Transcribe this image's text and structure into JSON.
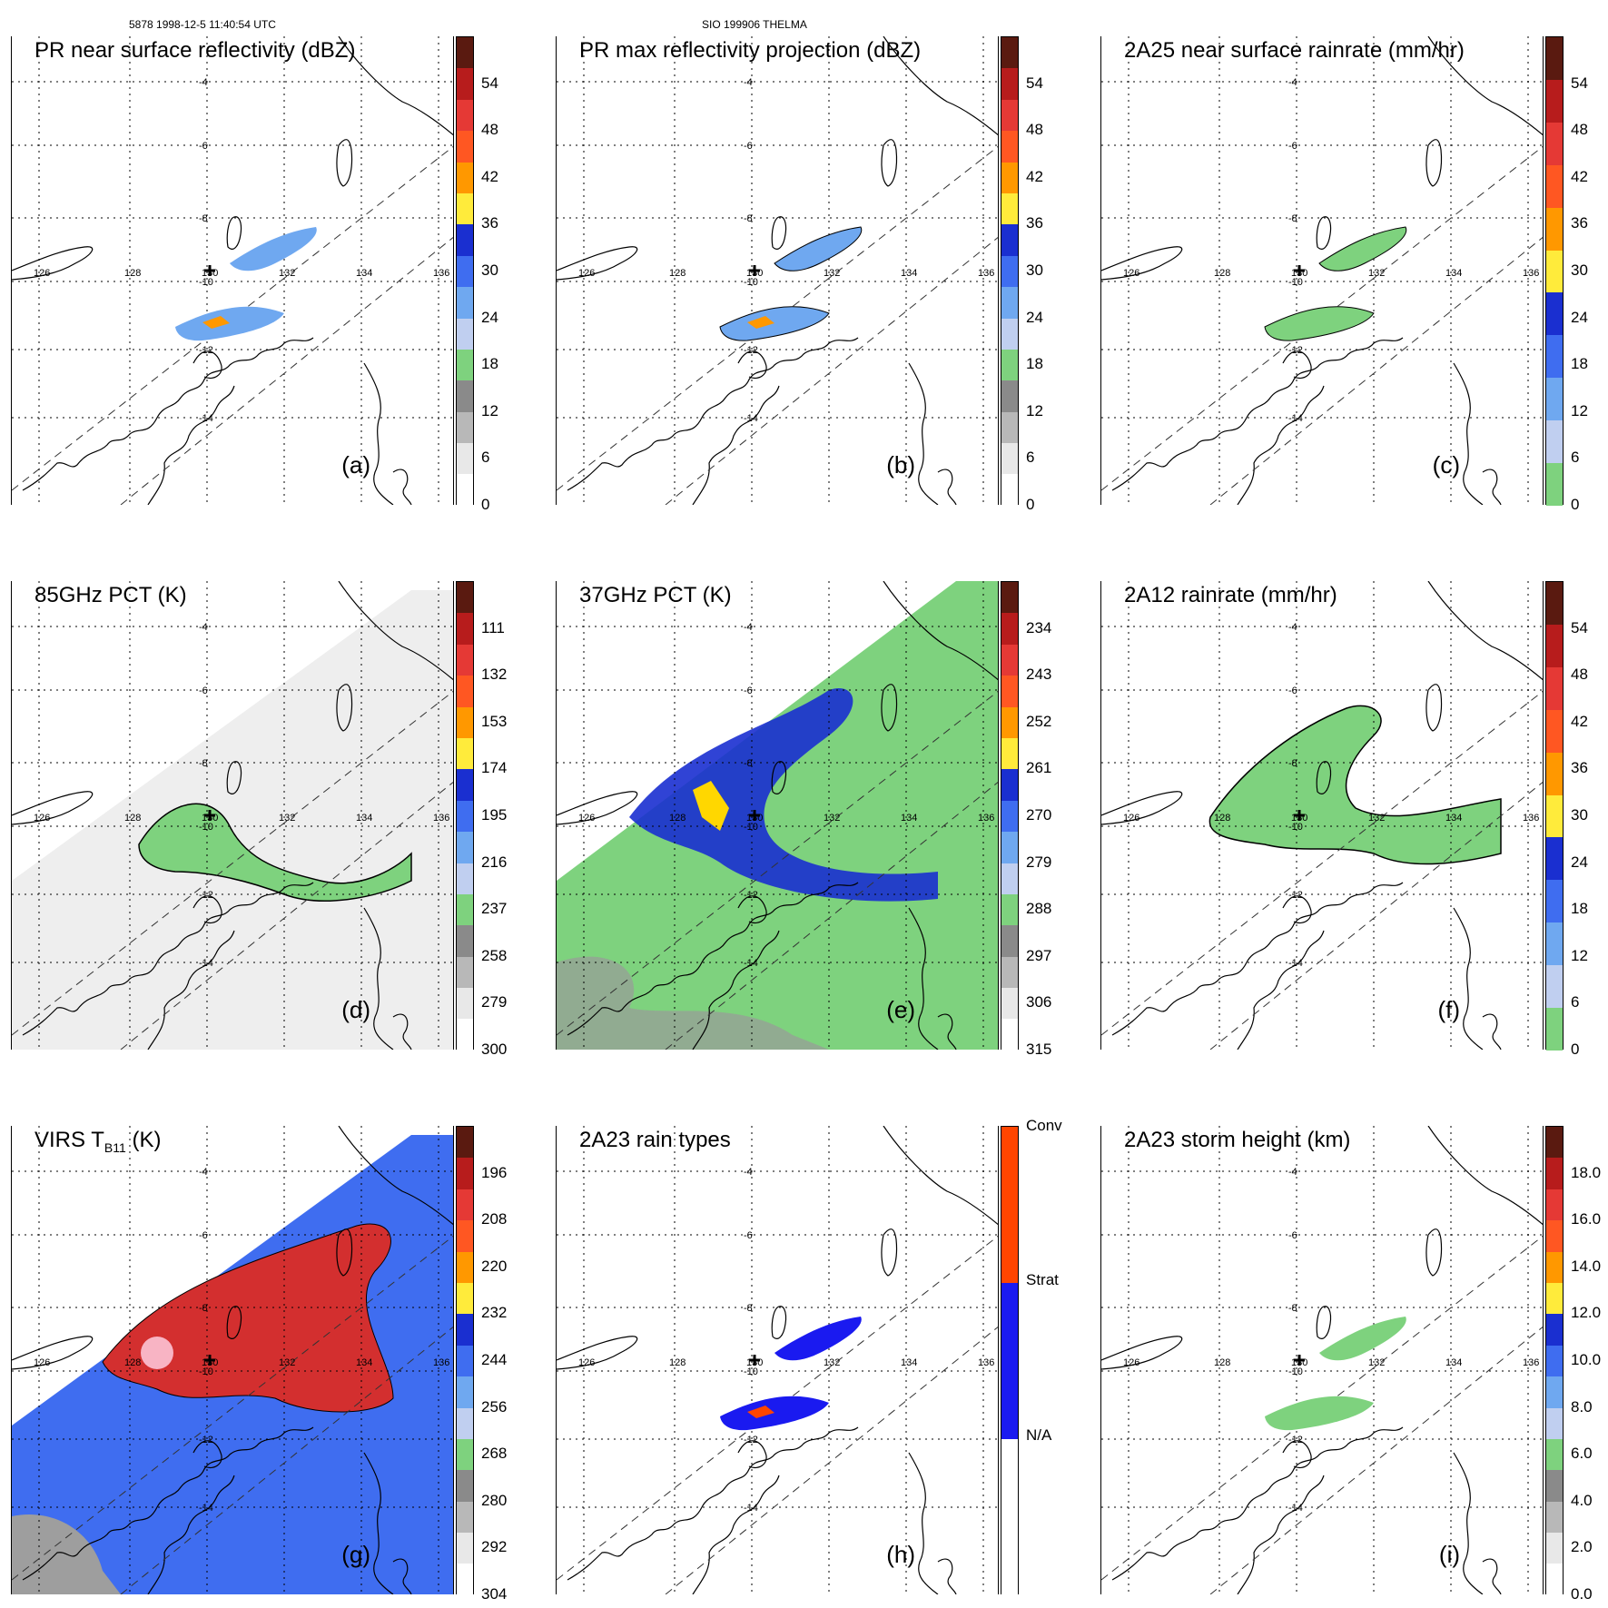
{
  "header": {
    "left": "5878 1998-12-5 11:40:54 UTC",
    "center": "SIO 199906 THELMA"
  },
  "map_labels": {
    "lon": [
      "126",
      "128",
      "130",
      "132",
      "134",
      "136"
    ],
    "lat": [
      "-4",
      "-6",
      "-8",
      "-10",
      "-12",
      "-14"
    ]
  },
  "panels": [
    {
      "id": "a",
      "title": "PR near surface reflectivity (dBZ)",
      "label": "(a)",
      "ticks": [
        "54",
        "48",
        "42",
        "36",
        "30",
        "24",
        "18",
        "12",
        "6",
        "0"
      ],
      "colors": [
        "#5a1a10",
        "#b71c1c",
        "#e53935",
        "#ff5722",
        "#ff9800",
        "#ffeb3b",
        "#1a2fd0",
        "#3f6df0",
        "#6fa8f0",
        "#c0cff0",
        "#7ed27e",
        "#8a8a8a",
        "#b8b8b8",
        "#e8e8e8",
        "#ffffff"
      ]
    },
    {
      "id": "b",
      "title": "PR max reflectivity projection (dBZ)",
      "label": "(b)",
      "ticks": [
        "54",
        "48",
        "42",
        "36",
        "30",
        "24",
        "18",
        "12",
        "6",
        "0"
      ],
      "colors": [
        "#5a1a10",
        "#b71c1c",
        "#e53935",
        "#ff5722",
        "#ff9800",
        "#ffeb3b",
        "#1a2fd0",
        "#3f6df0",
        "#6fa8f0",
        "#c0cff0",
        "#7ed27e",
        "#8a8a8a",
        "#b8b8b8",
        "#e8e8e8",
        "#ffffff"
      ]
    },
    {
      "id": "c",
      "title": "2A25 near surface rainrate (mm/hr)",
      "label": "(c)",
      "ticks": [
        "54",
        "48",
        "42",
        "36",
        "30",
        "24",
        "18",
        "12",
        "6",
        "0"
      ],
      "colors": [
        "#5a1a10",
        "#b71c1c",
        "#e53935",
        "#ff5722",
        "#ff9800",
        "#ffeb3b",
        "#1a2fd0",
        "#3f6df0",
        "#6fa8f0",
        "#c0cff0",
        "#7ed27e"
      ]
    },
    {
      "id": "d",
      "title": "85GHz PCT (K)",
      "label": "(d)",
      "ticks": [
        "111",
        "132",
        "153",
        "174",
        "195",
        "216",
        "237",
        "258",
        "279",
        "300"
      ],
      "colors": [
        "#5a1a10",
        "#b71c1c",
        "#e53935",
        "#ff5722",
        "#ff9800",
        "#ffeb3b",
        "#1a2fd0",
        "#3f6df0",
        "#6fa8f0",
        "#c0cff0",
        "#7ed27e",
        "#8a8a8a",
        "#b8b8b8",
        "#e8e8e8",
        "#ffffff"
      ]
    },
    {
      "id": "e",
      "title": "37GHz PCT (K)",
      "label": "(e)",
      "ticks": [
        "234",
        "243",
        "252",
        "261",
        "270",
        "279",
        "288",
        "297",
        "306",
        "315"
      ],
      "colors": [
        "#5a1a10",
        "#b71c1c",
        "#e53935",
        "#ff5722",
        "#ff9800",
        "#ffeb3b",
        "#1a2fd0",
        "#3f6df0",
        "#6fa8f0",
        "#c0cff0",
        "#7ed27e",
        "#8a8a8a",
        "#b8b8b8",
        "#e8e8e8",
        "#ffffff"
      ]
    },
    {
      "id": "f",
      "title": "2A12 rainrate (mm/hr)",
      "label": "(f)",
      "ticks": [
        "54",
        "48",
        "42",
        "36",
        "30",
        "24",
        "18",
        "12",
        "6",
        "0"
      ],
      "colors": [
        "#5a1a10",
        "#b71c1c",
        "#e53935",
        "#ff5722",
        "#ff9800",
        "#ffeb3b",
        "#1a2fd0",
        "#3f6df0",
        "#6fa8f0",
        "#c0cff0",
        "#7ed27e"
      ]
    },
    {
      "id": "g",
      "title": "VIRS T",
      "title_sub": "B11",
      "title_tail": " (K)",
      "label": "(g)",
      "ticks": [
        "196",
        "208",
        "220",
        "232",
        "244",
        "256",
        "268",
        "280",
        "292",
        "304"
      ],
      "colors": [
        "#5a1a10",
        "#b71c1c",
        "#e53935",
        "#ff5722",
        "#ff9800",
        "#ffeb3b",
        "#1a2fd0",
        "#3f6df0",
        "#6fa8f0",
        "#c0cff0",
        "#7ed27e",
        "#8a8a8a",
        "#b8b8b8",
        "#e8e8e8",
        "#ffffff"
      ]
    },
    {
      "id": "h",
      "title": "2A23 rain types",
      "label": "(h)",
      "ticks": [
        "Conv",
        "Strat",
        "N/A"
      ],
      "colors": [
        "#ff4500",
        "#1a1af0",
        "#ffffff"
      ]
    },
    {
      "id": "i",
      "title": "2A23 storm height (km)",
      "label": "(i)",
      "ticks": [
        "18.0",
        "16.0",
        "14.0",
        "12.0",
        "10.0",
        "8.0",
        "6.0",
        "4.0",
        "2.0",
        "0.0"
      ],
      "colors": [
        "#5a1a10",
        "#b71c1c",
        "#e53935",
        "#ff5722",
        "#ff9800",
        "#ffeb3b",
        "#1a2fd0",
        "#3f6df0",
        "#6fa8f0",
        "#c0cff0",
        "#7ed27e",
        "#8a8a8a",
        "#b8b8b8",
        "#e8e8e8",
        "#ffffff"
      ]
    }
  ]
}
